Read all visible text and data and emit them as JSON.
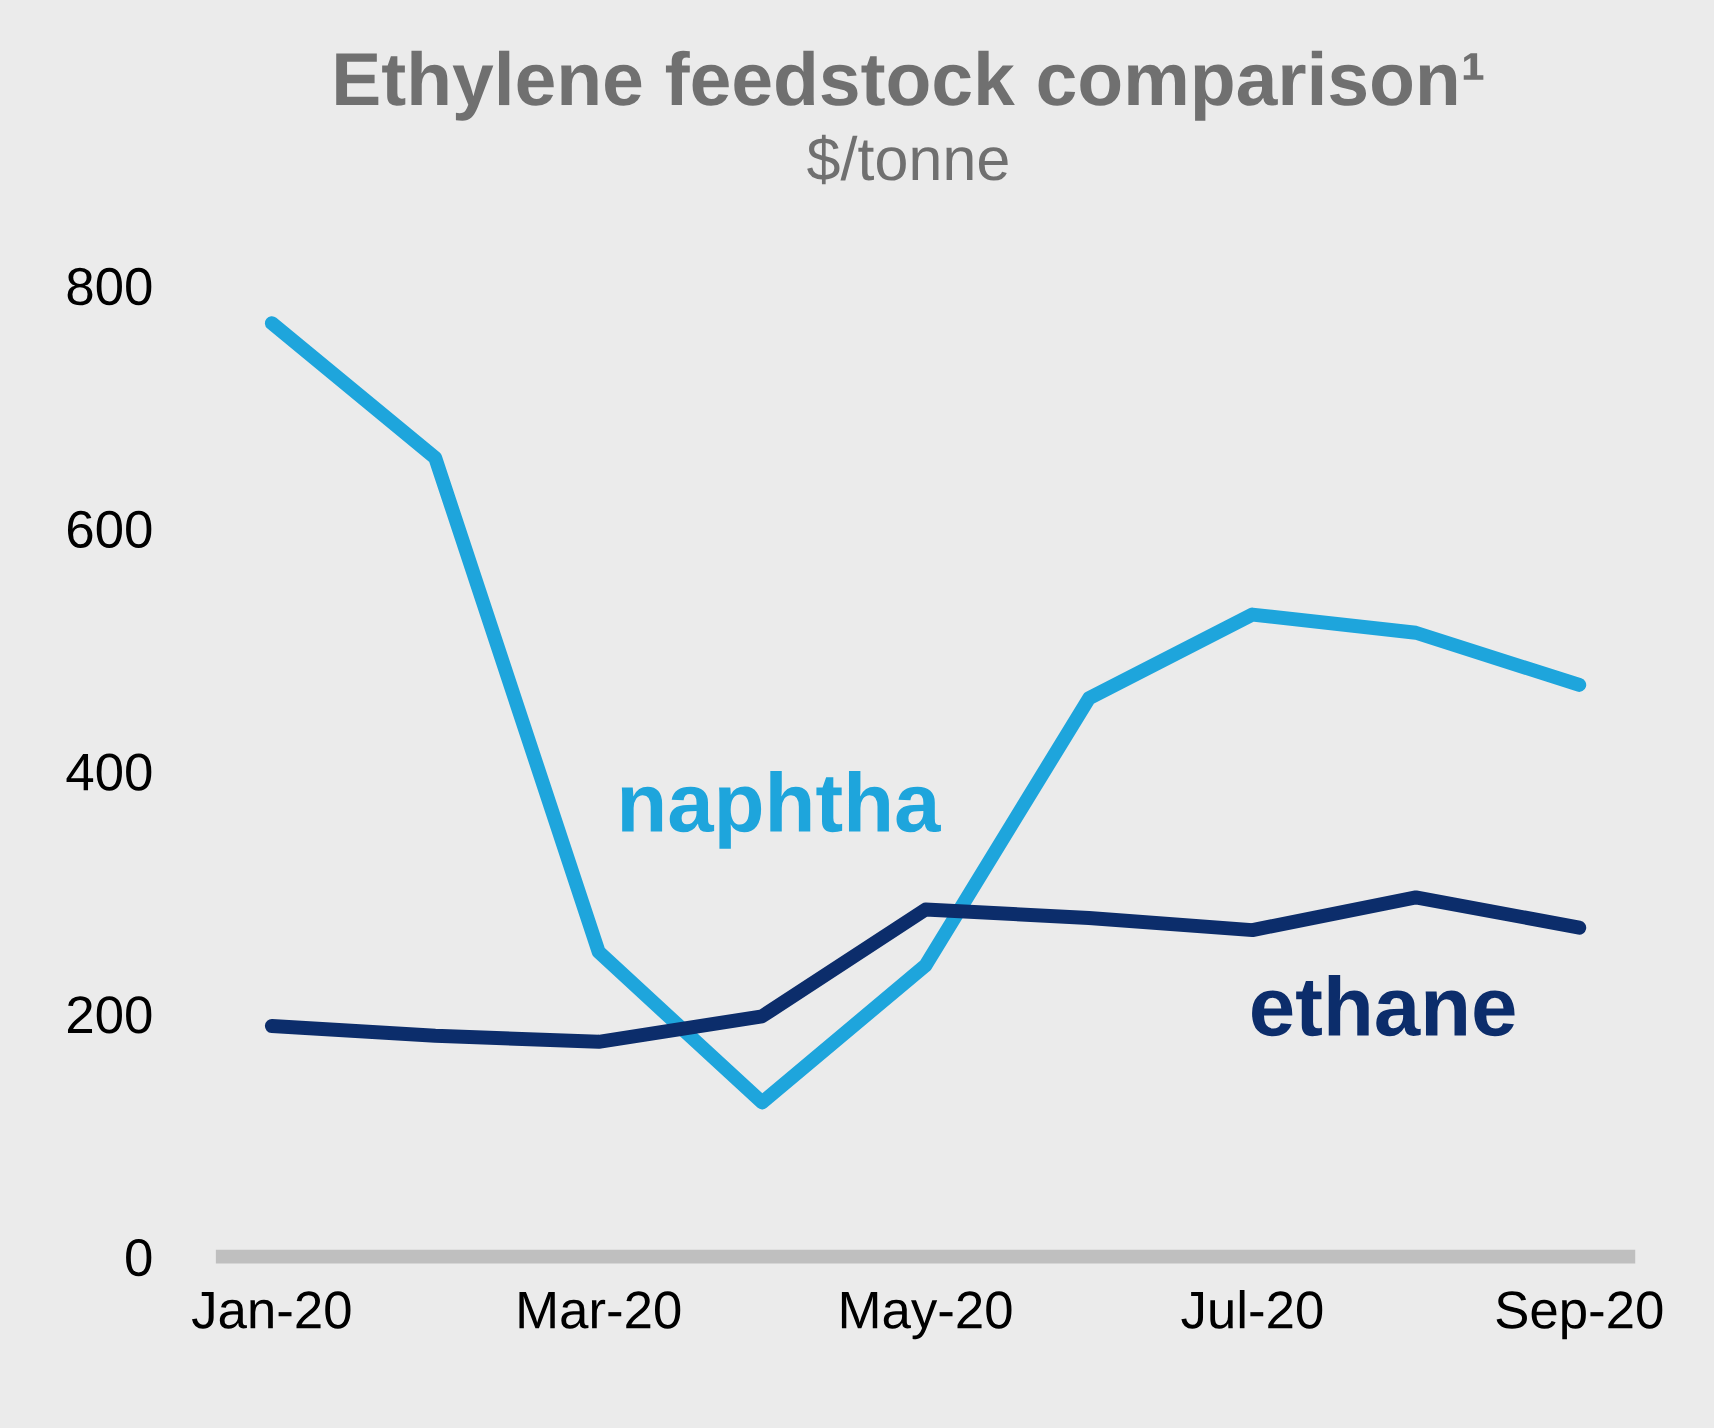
{
  "chart_data": {
    "type": "line",
    "title": "Ethylene feedstock comparison¹",
    "subtitle": "$/tonne",
    "categories": [
      "Jan-20",
      null,
      "Mar-20",
      null,
      "May-20",
      null,
      "Jul-20",
      null,
      "Sep-20"
    ],
    "series": [
      {
        "name": "naphtha",
        "color": "#1ea5dc",
        "values": [
          769,
          658,
          251,
          127,
          240,
          460,
          529,
          514,
          471
        ]
      },
      {
        "name": "ethane",
        "color": "#0c2d6b",
        "values": [
          190,
          182,
          177,
          198,
          286,
          279,
          269,
          296,
          271
        ]
      }
    ],
    "ylim": [
      0,
      800
    ],
    "yticks": [
      0,
      200,
      400,
      600,
      800
    ],
    "grid": false,
    "legend": false,
    "marker": "none",
    "line_style": "solid"
  }
}
